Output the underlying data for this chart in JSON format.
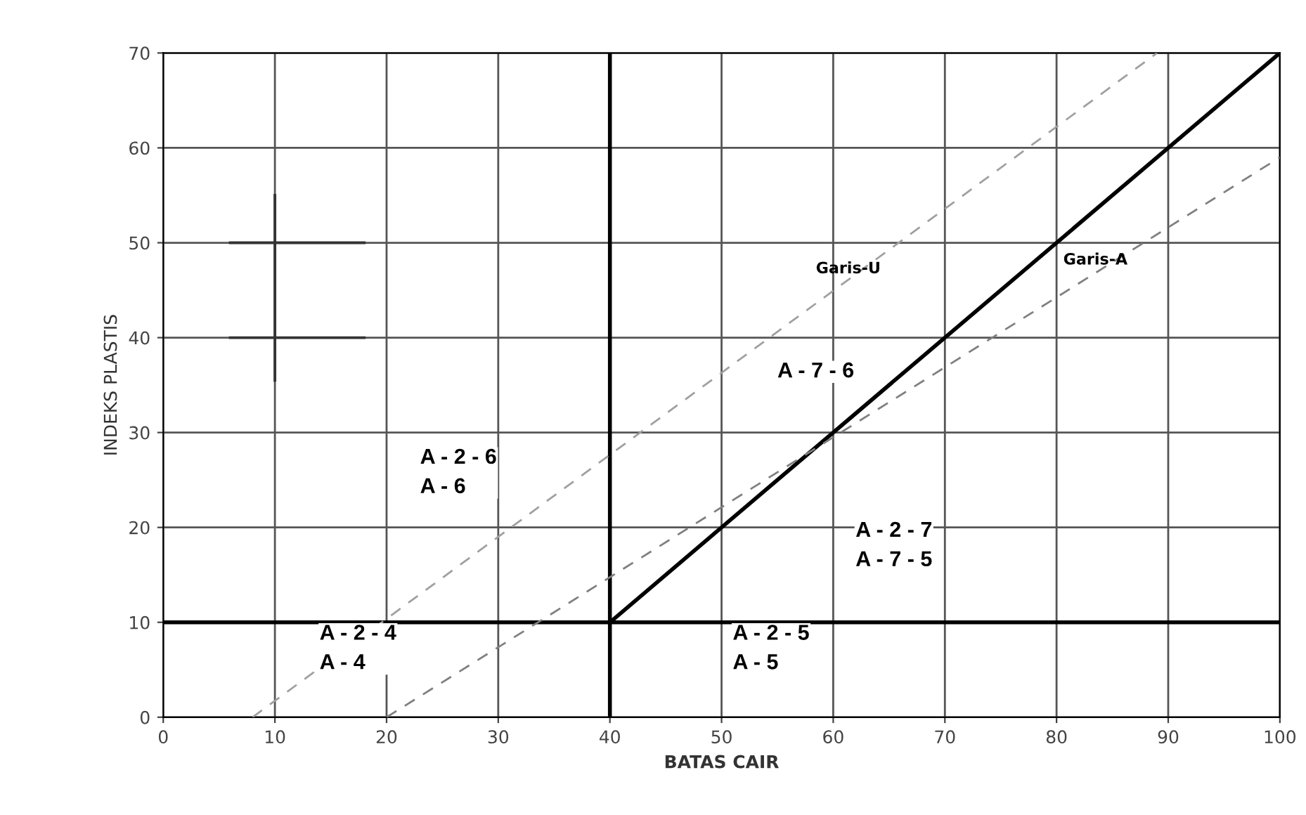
{
  "chart_data": {
    "type": "line",
    "xlabel": "BATAS CAIR",
    "ylabel": "INDEKS PLASTIS",
    "xlim": [
      0,
      100
    ],
    "ylim": [
      0,
      70
    ],
    "xticks": [
      0,
      10,
      20,
      30,
      40,
      50,
      60,
      70,
      80,
      90,
      100
    ],
    "yticks": [
      0,
      10,
      20,
      30,
      40,
      50,
      60,
      70
    ],
    "grid": true,
    "marker": "none",
    "series": [
      {
        "x": [
          40,
          40
        ],
        "values": [
          0,
          70
        ],
        "color": "#000000",
        "line_style": "solid"
      },
      {
        "x": [
          0,
          100
        ],
        "values": [
          10,
          10
        ],
        "color": "#000000",
        "line_style": "solid"
      },
      {
        "x": [
          40,
          100
        ],
        "values": [
          10,
          70
        ],
        "color": "#000000",
        "line_style": "solid"
      },
      {
        "x": [
          8,
          89
        ],
        "values": [
          0,
          70
        ],
        "color": "#a0a0a0",
        "line_style": "dashed",
        "name": "Garis-U"
      },
      {
        "x": [
          20,
          100
        ],
        "values": [
          0,
          59
        ],
        "color": "#808080",
        "line_style": "dashed",
        "name": "Garis-A"
      },
      {
        "x": [
          10,
          10
        ],
        "values": [
          35.5,
          55
        ],
        "color": "#333333",
        "line_style": "solid"
      },
      {
        "x": [
          6,
          18
        ],
        "values": [
          50,
          50
        ],
        "color": "#333333",
        "line_style": "solid"
      },
      {
        "x": [
          6,
          18
        ],
        "values": [
          40,
          40
        ],
        "color": "#333333",
        "line_style": "solid"
      }
    ],
    "annotations": [
      "A - 7 - 6",
      "A - 2 - 6\nA - 6",
      "A - 2 - 7\nA - 7 - 5",
      "A - 2 - 4\nA - 4",
      "A - 2 - 5\nA - 5"
    ]
  }
}
